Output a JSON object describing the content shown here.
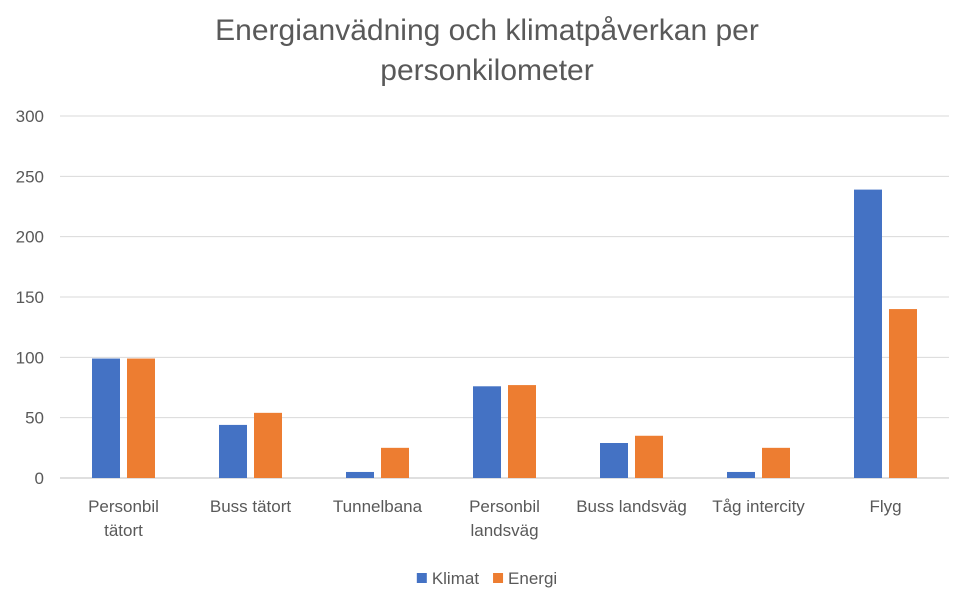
{
  "chart_data": {
    "type": "bar",
    "title_lines": [
      "Energianvädning och klimatpåverkan per",
      "personkilometer"
    ],
    "categories": [
      [
        "Personbil",
        "tätort"
      ],
      [
        "Buss tätort"
      ],
      [
        "Tunnelbana"
      ],
      [
        "Personbil",
        "landsväg"
      ],
      [
        "Buss landsväg"
      ],
      [
        "Tåg intercity"
      ],
      [
        "Flyg"
      ]
    ],
    "series": [
      {
        "name": "Klimat",
        "color": "#4472c4",
        "values": [
          99,
          44,
          5,
          76,
          29,
          5,
          239
        ]
      },
      {
        "name": "Energi",
        "color": "#ed7d31",
        "values": [
          99,
          54,
          25,
          77,
          35,
          25,
          140
        ]
      }
    ],
    "ylim": [
      0,
      300
    ],
    "yticks": [
      0,
      50,
      100,
      150,
      200,
      250,
      300
    ],
    "grid": true,
    "legend": "bottom"
  }
}
